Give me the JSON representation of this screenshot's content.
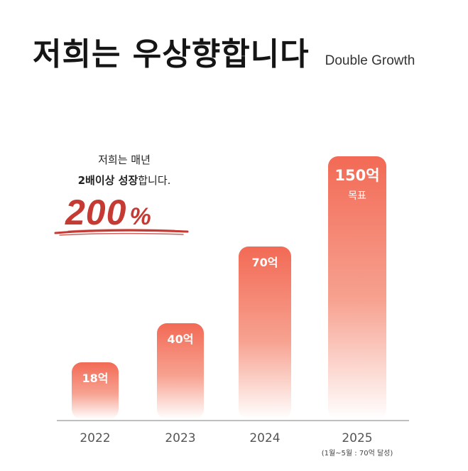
{
  "header": {
    "title": "저희는 우상향합니다",
    "subtitle": "Double Growth"
  },
  "claim": {
    "line1": "저희는 매년",
    "line2_bold": "2배이상 성장",
    "line2_rest": "합니다.",
    "big_number": "200",
    "big_unit": "%"
  },
  "colors": {
    "bar_top": "#f26a55",
    "bar_bottom": "#ffffff",
    "accent": "#c63a34",
    "axis": "#bfbfbf"
  },
  "chart_data": {
    "type": "bar",
    "categories": [
      "2022",
      "2023",
      "2024",
      "2025"
    ],
    "values": [
      18,
      40,
      70,
      150
    ],
    "data_labels": [
      "18억",
      "40억",
      "70억",
      "150억"
    ],
    "extra_labels": [
      "",
      "",
      "",
      "목표"
    ],
    "category_notes": [
      "",
      "",
      "",
      "(1월~5월 : 70억 달성)"
    ],
    "title": "",
    "xlabel": "",
    "ylabel": "",
    "grid": false
  }
}
